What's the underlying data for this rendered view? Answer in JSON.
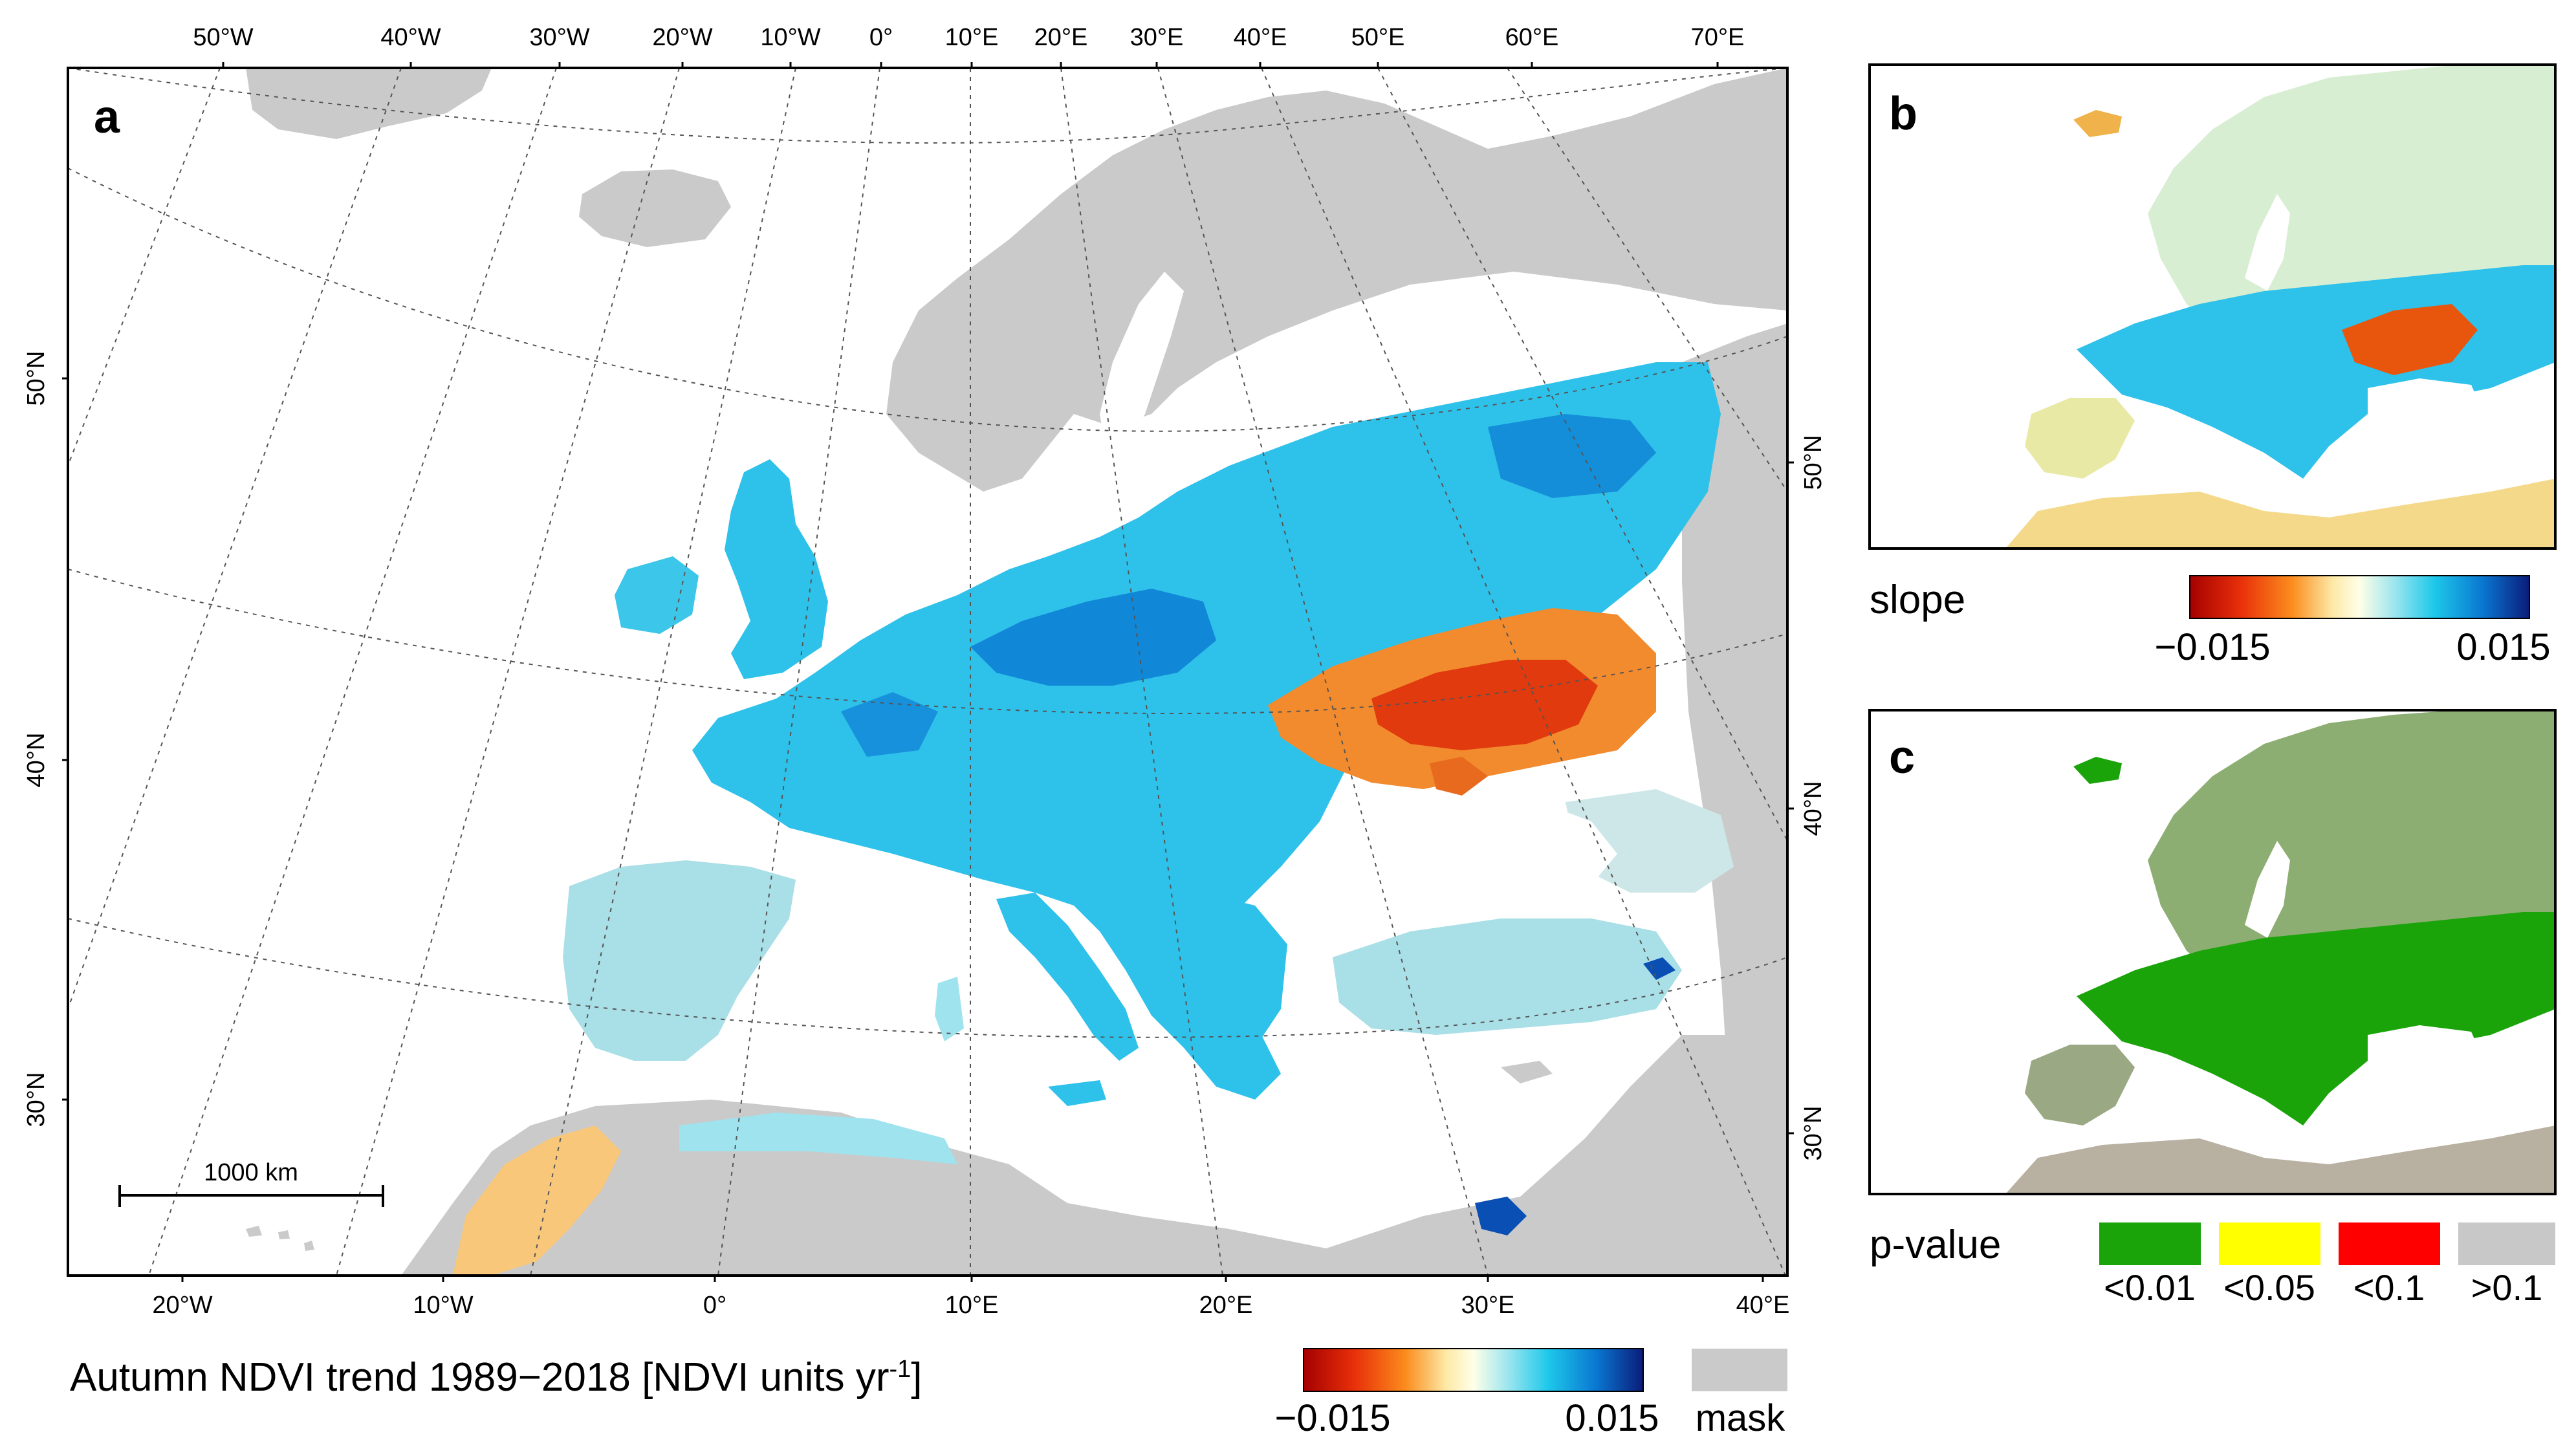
{
  "panel_a": {
    "letter": "a",
    "top_ticks": [
      "50°W",
      "40°W",
      "30°W",
      "20°W",
      "10°W",
      "0°",
      "10°E",
      "20°E",
      "30°E",
      "40°E",
      "50°E",
      "60°E",
      "70°E"
    ],
    "bottom_ticks": [
      "20°W",
      "10°W",
      "0°",
      "10°E",
      "20°E",
      "30°E",
      "40°E"
    ],
    "left_ticks": [
      "50°N",
      "40°N",
      "30°N"
    ],
    "right_ticks": [
      "50°N",
      "40°N",
      "30°N"
    ],
    "scale_bar_label": "1000 km",
    "title_main": "Autumn NDVI trend 1989−2018 [NDVI units yr",
    "title_sup": "-1",
    "title_end": "]",
    "colorbar_min": "−0.015",
    "colorbar_max": "0.015",
    "mask_label": "mask"
  },
  "panel_b": {
    "letter": "b",
    "legend_title": "slope",
    "colorbar_min": "−0.015",
    "colorbar_max": "0.015"
  },
  "panel_c": {
    "letter": "c",
    "legend_title": "p-value",
    "classes": [
      {
        "label": "<0.01",
        "color": "#1aa40a"
      },
      {
        "label": "<0.05",
        "color": "#ffff00"
      },
      {
        "label": "<0.1",
        "color": "#ff0000"
      },
      {
        "label": ">0.1",
        "color": "#c8c8c8"
      }
    ]
  },
  "colors": {
    "mask": "#cacaca",
    "slope_ramp": [
      "#a50000",
      "#e8300a",
      "#fb8c1c",
      "#fde9a6",
      "#ffffe8",
      "#c9f0f0",
      "#1ec8ea",
      "#0a78d2",
      "#0a1c7a"
    ]
  }
}
